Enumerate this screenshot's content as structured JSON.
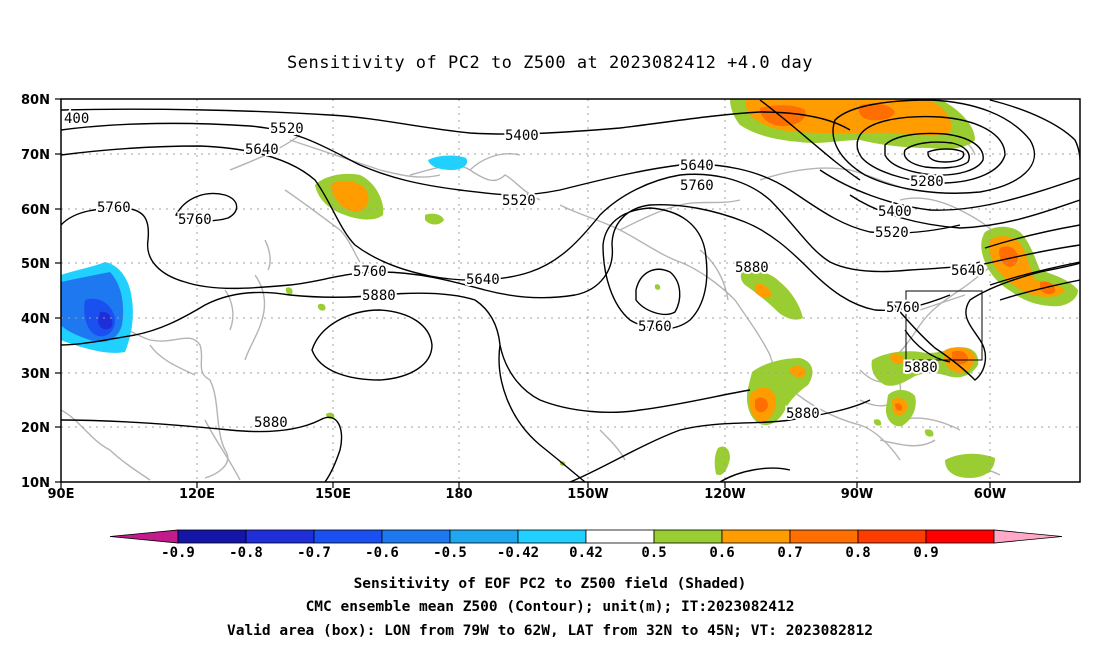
{
  "title": "Sensitivity of PC2 to Z500 at 2023082412 +4.0 day",
  "map": {
    "lat_ticks": [
      "80N",
      "70N",
      "60N",
      "50N",
      "40N",
      "30N",
      "20N",
      "10N"
    ],
    "lon_ticks": [
      "90E",
      "120E",
      "150E",
      "180",
      "150W",
      "120W",
      "90W",
      "60W"
    ],
    "contour_labels": [
      "400",
      "5520",
      "5640",
      "5760",
      "5760",
      "5400",
      "5640",
      "5760",
      "5520",
      "5760",
      "5640",
      "5880",
      "5760",
      "5880",
      "5280",
      "5400",
      "5520",
      "5640",
      "5760",
      "5880",
      "5880",
      "5880"
    ],
    "valid_box": {
      "lon_min": "79W",
      "lon_max": "62W",
      "lat_min": "32N",
      "lat_max": "45N"
    }
  },
  "colorbar": {
    "labels": [
      "-0.9",
      "-0.8",
      "-0.7",
      "-0.6",
      "-0.5",
      "-0.42",
      "0.42",
      "0.5",
      "0.6",
      "0.7",
      "0.8",
      "0.9"
    ],
    "colors": [
      "#c21b8c",
      "#1515a8",
      "#1e2ed8",
      "#1a4ff0",
      "#1e78f0",
      "#1fa8f0",
      "#20d0ff",
      "#ffffff",
      "#9acd32",
      "#ff9c00",
      "#ff6e00",
      "#ff3c00",
      "#ff0000",
      "#ffa8c8"
    ]
  },
  "caption": {
    "line1": "Sensitivity of EOF PC2 to Z500 field (Shaded)",
    "line2": "CMC ensemble mean Z500 (Contour); unit(m); IT:2023082412",
    "line3": "Valid area (box): LON from 79W to 62W, LAT from 32N to 45N; VT: 2023082812"
  }
}
